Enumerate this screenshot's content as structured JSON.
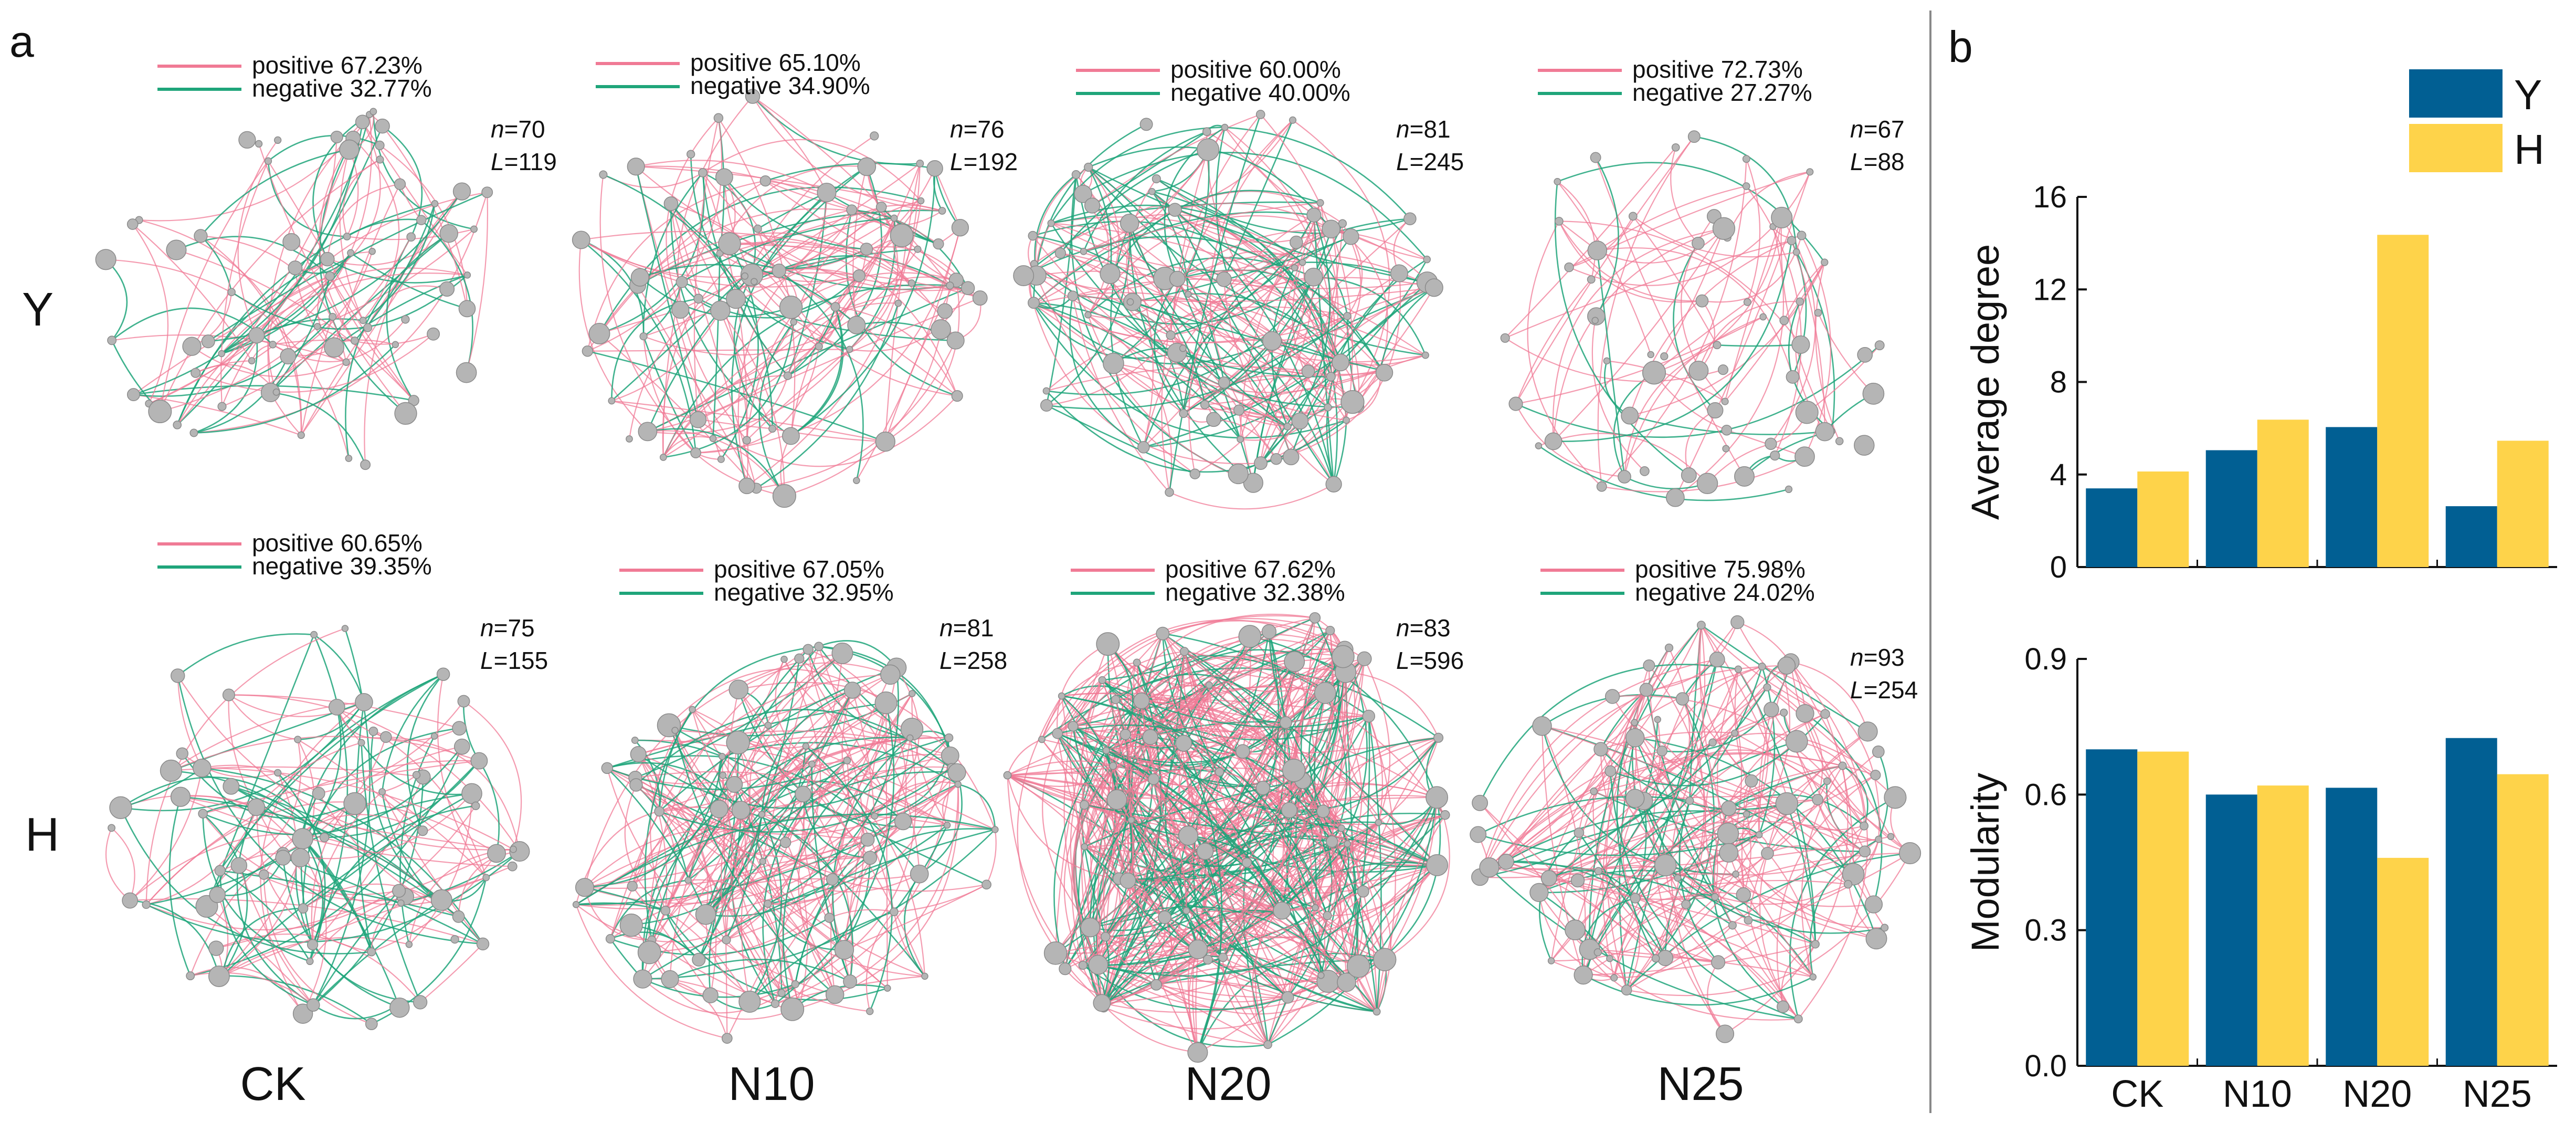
{
  "panel_a_label": "a",
  "panel_b_label": "b",
  "colors": {
    "positive": "#f07a95",
    "negative": "#1fa57a",
    "node": "#b5b5b5",
    "node_stroke": "#8a8a8a",
    "Y": "#015f93",
    "H": "#fed34a"
  },
  "row_labels": [
    "Y",
    "H"
  ],
  "column_labels": [
    "CK",
    "N10",
    "N20",
    "N25"
  ],
  "legend_words": {
    "positive": "positive",
    "negative": "negative"
  },
  "networks": [
    {
      "row": "Y",
      "treatment": "CK",
      "positive": "67.23%",
      "negative": "32.77%",
      "n": "70",
      "L": "119"
    },
    {
      "row": "Y",
      "treatment": "N10",
      "positive": "65.10%",
      "negative": "34.90%",
      "n": "76",
      "L": "192"
    },
    {
      "row": "Y",
      "treatment": "N20",
      "positive": "60.00%",
      "negative": "40.00%",
      "n": "81",
      "L": "245"
    },
    {
      "row": "Y",
      "treatment": "N25",
      "positive": "72.73%",
      "negative": "27.27%",
      "n": "67",
      "L": "88"
    },
    {
      "row": "H",
      "treatment": "CK",
      "positive": "60.65%",
      "negative": "39.35%",
      "n": "75",
      "L": "155"
    },
    {
      "row": "H",
      "treatment": "N10",
      "positive": "67.05%",
      "negative": "32.95%",
      "n": "81",
      "L": "258"
    },
    {
      "row": "H",
      "treatment": "N20",
      "positive": "67.62%",
      "negative": "32.38%",
      "n": "83",
      "L": "596"
    },
    {
      "row": "H",
      "treatment": "N25",
      "positive": "75.98%",
      "negative": "24.02%",
      "n": "93",
      "L": "254"
    }
  ],
  "chart_data": [
    {
      "type": "bar",
      "ylabel": "Average degree",
      "categories": [
        "CK",
        "N10",
        "N20",
        "N25"
      ],
      "ylim": [
        0,
        16
      ],
      "yticks": [
        "0",
        "4",
        "8",
        "12",
        "16"
      ],
      "series": [
        {
          "name": "Y",
          "values": [
            3.4,
            5.05,
            6.05,
            2.63
          ]
        },
        {
          "name": "H",
          "values": [
            4.13,
            6.37,
            14.36,
            5.46
          ]
        }
      ]
    },
    {
      "type": "bar",
      "ylabel": "Modularity",
      "categories": [
        "CK",
        "N10",
        "N20",
        "N25"
      ],
      "ylim": [
        0,
        0.9
      ],
      "yticks": [
        "0.0",
        "0.3",
        "0.6",
        "0.9"
      ],
      "series": [
        {
          "name": "Y",
          "values": [
            0.7,
            0.6,
            0.615,
            0.725
          ]
        },
        {
          "name": "H",
          "values": [
            0.695,
            0.62,
            0.46,
            0.645
          ]
        }
      ]
    }
  ]
}
